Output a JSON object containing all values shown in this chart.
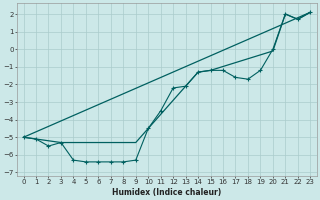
{
  "xlabel": "Humidex (Indice chaleur)",
  "bg_color": "#cce8e8",
  "grid_color": "#aacccc",
  "line_color": "#006060",
  "xlim": [
    -0.5,
    23.5
  ],
  "ylim": [
    -7.2,
    2.6
  ],
  "xticks": [
    0,
    1,
    2,
    3,
    4,
    5,
    6,
    7,
    8,
    9,
    10,
    11,
    12,
    13,
    14,
    15,
    16,
    17,
    18,
    19,
    20,
    21,
    22,
    23
  ],
  "yticks": [
    -7,
    -6,
    -5,
    -4,
    -3,
    -2,
    -1,
    0,
    1,
    2
  ],
  "line1_x": [
    0,
    1,
    2,
    3,
    4,
    5,
    6,
    7,
    8,
    9,
    10,
    11,
    12,
    13,
    14,
    15,
    16,
    17,
    18,
    19,
    20,
    21,
    22,
    23
  ],
  "line1_y": [
    -5.0,
    -5.1,
    -5.5,
    -5.3,
    -6.3,
    -6.4,
    -6.4,
    -6.4,
    -6.4,
    -6.3,
    -4.5,
    -3.5,
    -2.2,
    -2.1,
    -1.3,
    -1.2,
    -1.2,
    -1.6,
    -1.7,
    -1.2,
    0.0,
    2.0,
    1.7,
    2.1
  ],
  "line2_x": [
    0,
    3,
    9,
    13,
    14,
    15,
    20,
    21,
    22,
    23
  ],
  "line2_y": [
    -5.0,
    -5.3,
    -5.3,
    -2.1,
    -1.3,
    -1.2,
    -0.1,
    2.0,
    1.7,
    2.1
  ],
  "line3_x": [
    0,
    23
  ],
  "line3_y": [
    -5.0,
    2.1
  ]
}
